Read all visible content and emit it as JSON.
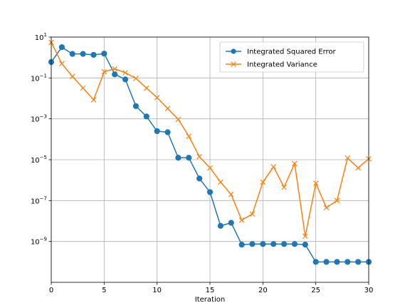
{
  "chart_data": {
    "type": "line",
    "xlabel": "Iteration",
    "ylabel": "",
    "title": "",
    "x": [
      0,
      1,
      2,
      3,
      4,
      5,
      6,
      7,
      8,
      9,
      10,
      11,
      12,
      13,
      14,
      15,
      16,
      17,
      18,
      19,
      20,
      21,
      22,
      23,
      24,
      25,
      26,
      27,
      28,
      29,
      30
    ],
    "yscale": "log",
    "xlim": [
      0,
      30
    ],
    "ylim_exponent": [
      -11,
      1
    ],
    "x_ticks": [
      "0",
      "5",
      "10",
      "15",
      "20",
      "25",
      "30"
    ],
    "x_tick_values": [
      0,
      5,
      10,
      15,
      20,
      25,
      30
    ],
    "y_ticks": [
      {
        "base": "10",
        "exp": "1",
        "value": 1
      },
      {
        "base": "10",
        "exp": "−1",
        "value": -1
      },
      {
        "base": "10",
        "exp": "−3",
        "value": -3
      },
      {
        "base": "10",
        "exp": "−5",
        "value": -5
      },
      {
        "base": "10",
        "exp": "−7",
        "value": -7
      },
      {
        "base": "10",
        "exp": "−9",
        "value": -9
      }
    ],
    "grid": true,
    "legend_position": "top-right",
    "series": [
      {
        "name": "Integrated Squared Error",
        "color": "#1f77b4",
        "marker": "circle",
        "values": [
          0.6,
          3.2,
          1.5,
          1.5,
          1.35,
          1.55,
          0.15,
          0.085,
          0.0042,
          0.0013,
          0.00025,
          0.00022,
          1.25e-05,
          1.25e-05,
          1.2e-06,
          2.6e-07,
          5.8e-09,
          8.2e-09,
          7e-10,
          7.5e-10,
          7.5e-10,
          7.5e-10,
          7.5e-10,
          7.5e-10,
          7e-10,
          1e-10,
          1e-10,
          1e-10,
          1e-10,
          1e-10,
          1e-10
        ]
      },
      {
        "name": "Integrated Variance",
        "color": "#ff7f0e",
        "marker": "x",
        "values": [
          5.5,
          0.5,
          0.12,
          0.032,
          0.0085,
          0.2,
          0.28,
          0.18,
          0.095,
          0.032,
          0.011,
          0.0032,
          0.00095,
          0.00014,
          1.4e-05,
          4e-06,
          8e-07,
          2e-07,
          1.1e-08,
          2.2e-08,
          8e-07,
          4.5e-06,
          4.5e-07,
          6.5e-06,
          1.8e-09,
          7e-07,
          4.5e-08,
          1e-07,
          1.2e-05,
          4e-06,
          1.1e-05
        ]
      }
    ]
  }
}
